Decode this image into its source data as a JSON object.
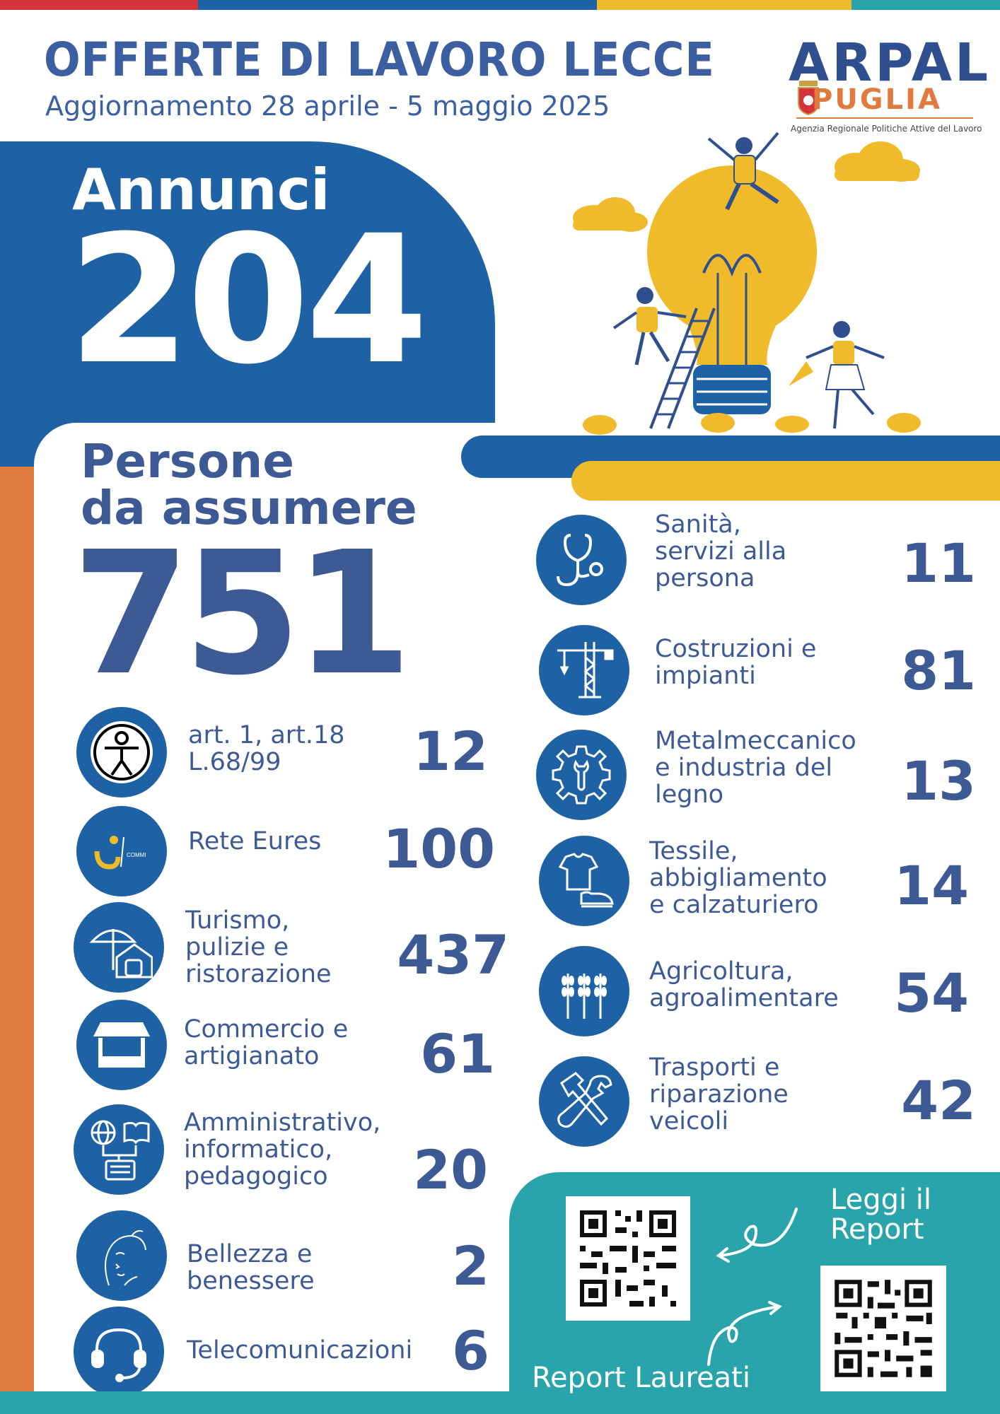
{
  "header": {
    "title": "OFFERTE DI LAVORO LECCE",
    "subtitle": "Aggiornamento 28 aprile - 5 maggio 2025"
  },
  "logo": {
    "name_top": "ARPAL",
    "name_bottom": "PUGLIA",
    "tagline": "Agenzia Regionale Politiche Attive del Lavoro"
  },
  "annunci": {
    "label": "Annunci",
    "value": "204"
  },
  "persone": {
    "label_line1": "Persone",
    "label_line2": "da assumere",
    "value": "751"
  },
  "categories_left": [
    {
      "icon": "accessibility-person-icon",
      "label_lines": [
        "art. 1, art.18",
        "L.68/99"
      ],
      "value": "12"
    },
    {
      "icon": "eures-logo-icon",
      "label_lines": [
        "Rete Eures"
      ],
      "value": "100"
    },
    {
      "icon": "umbrella-house-icon",
      "label_lines": [
        "Turismo,",
        "pulizie e",
        "ristorazione"
      ],
      "value": "437"
    },
    {
      "icon": "market-stall-icon",
      "label_lines": [
        "Commercio e",
        "artigianato"
      ],
      "value": "61"
    },
    {
      "icon": "globe-book-network-icon",
      "label_lines": [
        "Amministrativo,",
        "informatico,",
        "pedagogico"
      ],
      "value": "20"
    },
    {
      "icon": "woman-face-icon",
      "label_lines": [
        "Bellezza e",
        "benessere"
      ],
      "value": "2"
    },
    {
      "icon": "headset-icon",
      "label_lines": [
        "Telecomunicazioni"
      ],
      "value": "6"
    }
  ],
  "categories_right": [
    {
      "icon": "stethoscope-icon",
      "label_lines": [
        "Sanità,",
        "servizi alla",
        "persona"
      ],
      "value": "11"
    },
    {
      "icon": "crane-icon",
      "label_lines": [
        "Costruzioni e",
        "impianti"
      ],
      "value": "81"
    },
    {
      "icon": "gear-wrench-icon",
      "label_lines": [
        "Metalmeccanico",
        "e industria del",
        "legno"
      ],
      "value": "13"
    },
    {
      "icon": "shirt-shoe-icon",
      "label_lines": [
        "Tessile,",
        "abbigliamento",
        "e calzaturiero"
      ],
      "value": "14"
    },
    {
      "icon": "wheat-icon",
      "label_lines": [
        "Agricoltura,",
        "agroalimentare"
      ],
      "value": "54"
    },
    {
      "icon": "hammer-wrench-icon",
      "label_lines": [
        "Trasporti e",
        "riparazione",
        "veicoli"
      ],
      "value": "42"
    }
  ],
  "reports": {
    "read_label_line1": "Leggi il",
    "read_label_line2": "Report",
    "graduates_label": "Report Laureati"
  },
  "colors": {
    "primary_blue": "#1e62a5",
    "text_blue": "#3e5a95",
    "yellow": "#f0bb2a",
    "orange": "#e07a3d",
    "teal": "#2aa4ab",
    "red": "#d5323a"
  }
}
